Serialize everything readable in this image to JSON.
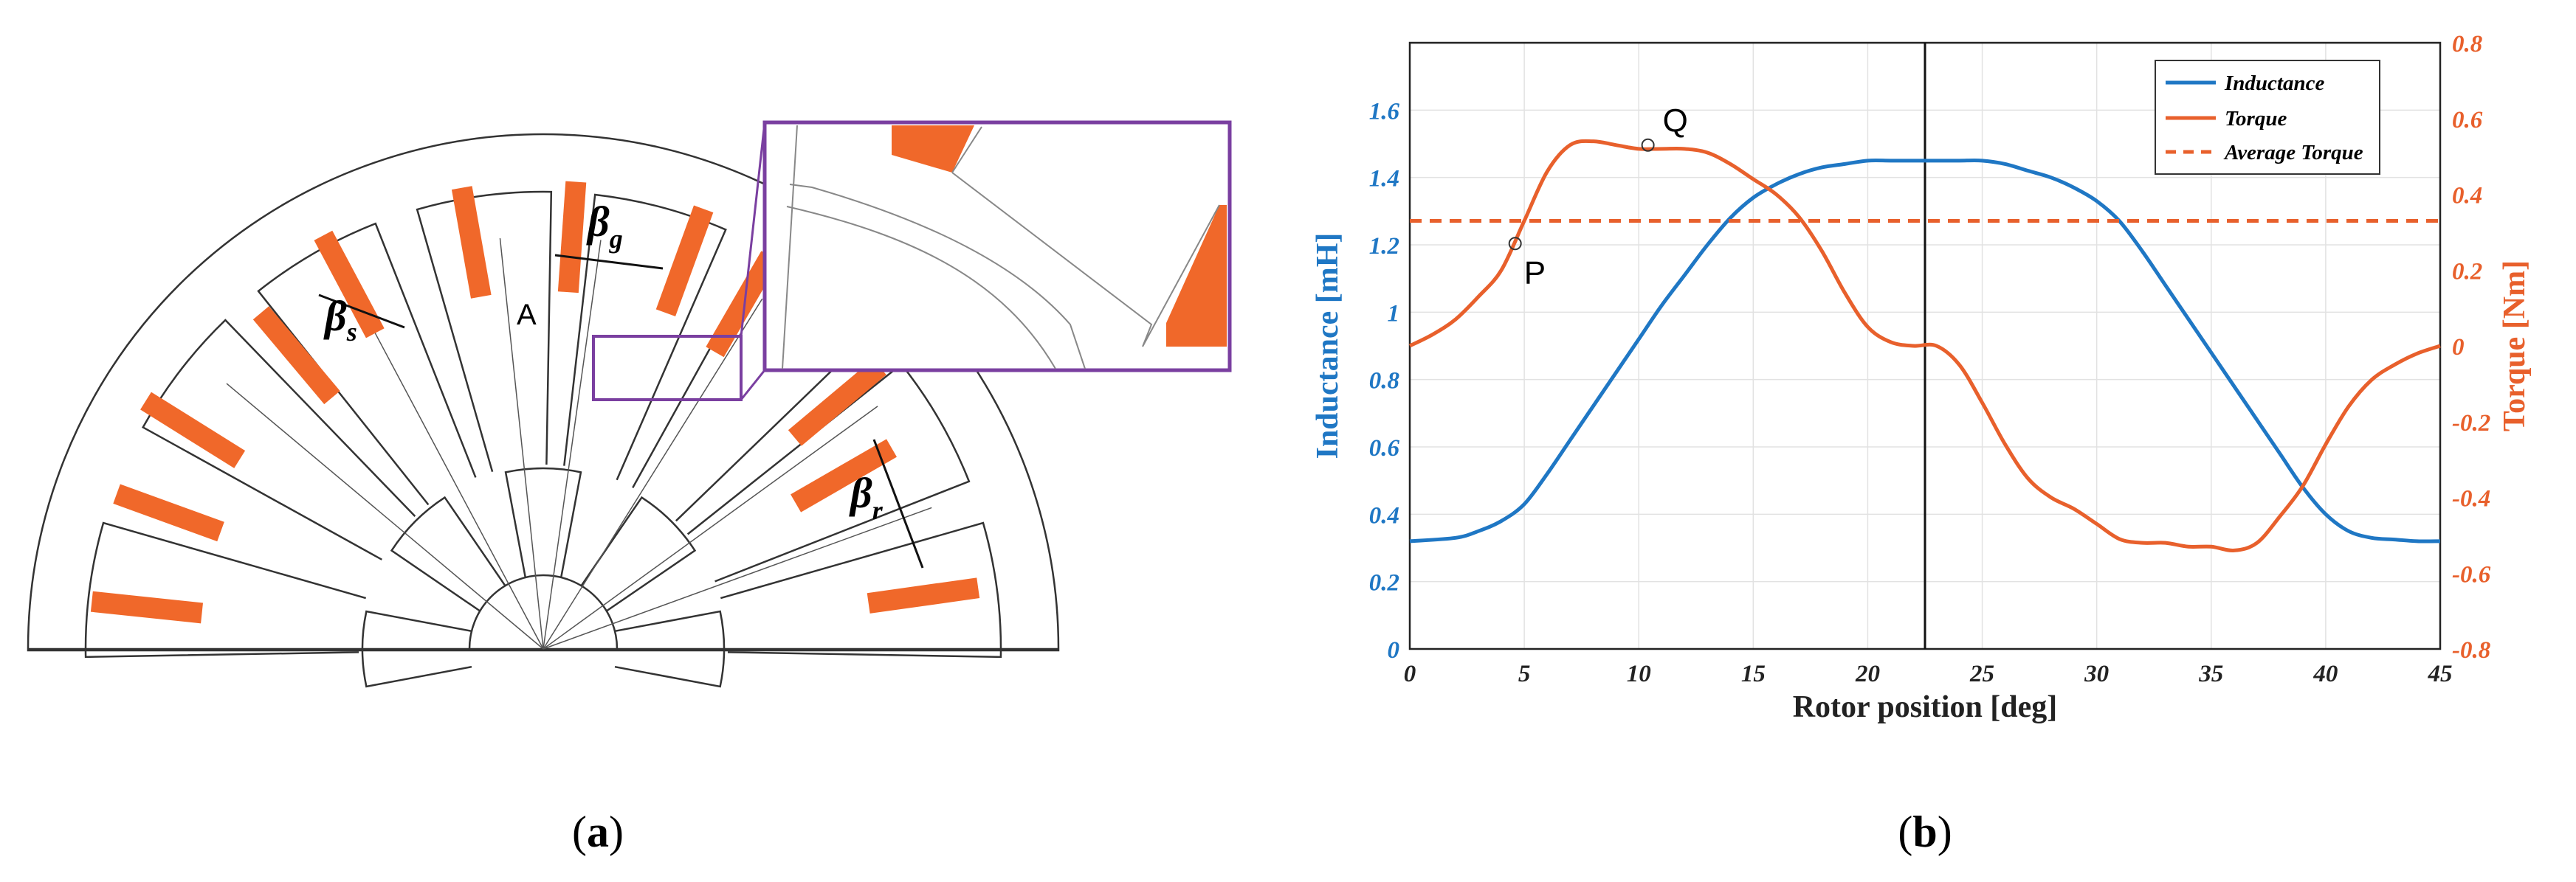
{
  "colors": {
    "inductance": "#1f77c4",
    "torque": "#e8602c",
    "motor_fill": "#f0682a",
    "zoom_box": "#7a3fa0",
    "axis": "#222222",
    "grid": "#e2e2e2"
  },
  "panel_a": {
    "caption_open": "(",
    "caption_letter": "a",
    "caption_close": ")",
    "label_A": "A",
    "beta_s": "β",
    "beta_s_sub": "s",
    "beta_g": "β",
    "beta_g_sub": "g",
    "beta_r": "β",
    "beta_r_sub": "r"
  },
  "panel_b": {
    "caption_open": "(",
    "caption_letter": "b",
    "caption_close": ")",
    "point_P": "P",
    "point_Q": "Q"
  },
  "chart_data": {
    "type": "line",
    "xlabel": "Rotor position [deg]",
    "ylabel_left": "Inductance [mH]",
    "ylabel_right": "Torque [Nm]",
    "xlim": [
      0,
      45
    ],
    "ylim_left": [
      0,
      1.8
    ],
    "ylim_right": [
      -0.8,
      0.8
    ],
    "x_ticks": [
      "0",
      "5",
      "10",
      "15",
      "20",
      "25",
      "30",
      "35",
      "40",
      "45"
    ],
    "y_left_ticks": [
      "0",
      "0.2",
      "0.4",
      "0.6",
      "0.8",
      "1",
      "1.2",
      "1.4",
      "1.6"
    ],
    "y_right_ticks": [
      "-0.8",
      "-0.6",
      "-0.4",
      "-0.2",
      "0",
      "0.2",
      "0.4",
      "0.6",
      "0.8"
    ],
    "grid": true,
    "legend_position": "top-right",
    "vertical_marker_x": 22.5,
    "series": [
      {
        "name": "Inductance",
        "axis": "left",
        "style": "solid",
        "x": [
          0,
          2,
          3,
          4,
          5,
          6,
          7,
          8,
          9,
          10,
          11,
          12,
          13,
          14,
          15,
          16,
          17,
          18,
          19,
          20,
          21,
          22,
          23,
          24,
          25,
          26,
          27,
          28,
          29,
          30,
          31,
          32,
          33,
          34,
          35,
          36,
          37,
          38,
          39,
          40,
          41,
          42,
          43,
          44,
          45
        ],
        "y": [
          0.32,
          0.33,
          0.35,
          0.38,
          0.43,
          0.52,
          0.62,
          0.72,
          0.82,
          0.92,
          1.02,
          1.11,
          1.2,
          1.28,
          1.34,
          1.38,
          1.41,
          1.43,
          1.44,
          1.45,
          1.45,
          1.45,
          1.45,
          1.45,
          1.45,
          1.44,
          1.42,
          1.4,
          1.37,
          1.33,
          1.27,
          1.18,
          1.08,
          0.98,
          0.88,
          0.78,
          0.68,
          0.58,
          0.48,
          0.4,
          0.35,
          0.33,
          0.325,
          0.32,
          0.32
        ]
      },
      {
        "name": "Torque",
        "axis": "right",
        "style": "solid",
        "x": [
          0,
          1,
          2,
          3,
          4,
          5,
          6,
          7,
          8,
          9,
          10,
          11,
          12,
          13,
          14,
          15,
          16,
          17,
          18,
          19,
          20,
          21,
          22,
          23,
          24,
          25,
          26,
          27,
          28,
          29,
          30,
          31,
          32,
          33,
          34,
          35,
          36,
          37,
          38,
          39,
          40,
          41,
          42,
          43,
          44,
          45
        ],
        "y": [
          0.0,
          0.03,
          0.07,
          0.13,
          0.2,
          0.33,
          0.46,
          0.53,
          0.54,
          0.53,
          0.52,
          0.52,
          0.52,
          0.51,
          0.48,
          0.44,
          0.4,
          0.34,
          0.25,
          0.14,
          0.05,
          0.01,
          0.0,
          0.0,
          -0.05,
          -0.15,
          -0.26,
          -0.35,
          -0.4,
          -0.43,
          -0.47,
          -0.51,
          -0.52,
          -0.52,
          -0.53,
          -0.53,
          -0.54,
          -0.52,
          -0.45,
          -0.37,
          -0.26,
          -0.16,
          -0.09,
          -0.05,
          -0.02,
          0.0
        ]
      },
      {
        "name": "Average Torque",
        "axis": "right",
        "style": "dashed",
        "x": [
          0,
          45
        ],
        "y": [
          0.33,
          0.33
        ]
      }
    ],
    "annotated_points": [
      {
        "label": "P",
        "x": 4.6,
        "torque": 0.27
      },
      {
        "label": "Q",
        "x": 10.4,
        "torque": 0.53
      }
    ]
  }
}
